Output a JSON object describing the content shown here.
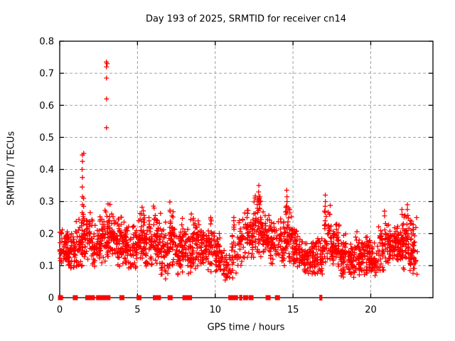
{
  "chart_data": {
    "type": "scatter",
    "title": "Day 193 of 2025, SRMTID for receiver cn14",
    "xlabel": "GPS time / hours",
    "ylabel": "SRMTID / TECUs",
    "xlim": [
      0,
      24
    ],
    "ylim": [
      0,
      0.8
    ],
    "xticks": [
      {
        "v": 0,
        "label": "0"
      },
      {
        "v": 5,
        "label": "5"
      },
      {
        "v": 10,
        "label": "10"
      },
      {
        "v": 15,
        "label": "15"
      },
      {
        "v": 20,
        "label": "20"
      }
    ],
    "yticks": [
      {
        "v": 0.0,
        "label": "0"
      },
      {
        "v": 0.1,
        "label": "0.1"
      },
      {
        "v": 0.2,
        "label": "0.2"
      },
      {
        "v": 0.3,
        "label": "0.3"
      },
      {
        "v": 0.4,
        "label": "0.4"
      },
      {
        "v": 0.5,
        "label": "0.5"
      },
      {
        "v": 0.6,
        "label": "0.6"
      },
      {
        "v": 0.7,
        "label": "0.7"
      },
      {
        "v": 0.8,
        "label": "0.8"
      }
    ],
    "grid": {
      "show": true,
      "color": "#a0a0a0",
      "dash": [
        4,
        3
      ]
    },
    "border_color": "#000000",
    "marker": {
      "shape": "plus",
      "color": "#ff0000",
      "size": 7,
      "stroke_width": 1.3
    },
    "series_name": "SRMTID",
    "data_x_end": 23.0,
    "seed": 7,
    "band_bins": {
      "bin_width": 0.5,
      "format": [
        "x_start",
        "y_min",
        "y_max",
        "count"
      ],
      "data": [
        [
          0.0,
          0.09,
          0.22,
          55
        ],
        [
          0.5,
          0.07,
          0.21,
          55
        ],
        [
          1.0,
          0.08,
          0.25,
          50
        ],
        [
          1.5,
          0.1,
          0.29,
          45
        ],
        [
          2.0,
          0.08,
          0.26,
          40
        ],
        [
          2.5,
          0.1,
          0.3,
          50
        ],
        [
          3.0,
          0.1,
          0.31,
          55
        ],
        [
          3.5,
          0.09,
          0.28,
          55
        ],
        [
          4.0,
          0.08,
          0.27,
          55
        ],
        [
          4.5,
          0.08,
          0.24,
          45
        ],
        [
          5.0,
          0.11,
          0.3,
          55
        ],
        [
          5.5,
          0.08,
          0.26,
          50
        ],
        [
          6.0,
          0.09,
          0.3,
          55
        ],
        [
          6.5,
          0.05,
          0.25,
          45
        ],
        [
          7.0,
          0.09,
          0.3,
          55
        ],
        [
          7.5,
          0.06,
          0.26,
          55
        ],
        [
          8.0,
          0.07,
          0.28,
          45
        ],
        [
          8.5,
          0.09,
          0.26,
          50
        ],
        [
          9.0,
          0.08,
          0.23,
          50
        ],
        [
          9.5,
          0.06,
          0.25,
          40
        ],
        [
          10.0,
          0.06,
          0.22,
          50
        ],
        [
          10.5,
          0.04,
          0.16,
          30
        ],
        [
          11.0,
          0.05,
          0.24,
          28
        ],
        [
          11.5,
          0.09,
          0.27,
          40
        ],
        [
          12.0,
          0.11,
          0.29,
          50
        ],
        [
          12.5,
          0.12,
          0.33,
          55
        ],
        [
          13.0,
          0.11,
          0.28,
          50
        ],
        [
          13.5,
          0.1,
          0.26,
          40
        ],
        [
          14.0,
          0.08,
          0.27,
          40
        ],
        [
          14.5,
          0.09,
          0.31,
          50
        ],
        [
          15.0,
          0.08,
          0.23,
          50
        ],
        [
          15.5,
          0.07,
          0.19,
          45
        ],
        [
          16.0,
          0.06,
          0.21,
          45
        ],
        [
          16.5,
          0.06,
          0.2,
          40
        ],
        [
          17.0,
          0.09,
          0.29,
          45
        ],
        [
          17.5,
          0.08,
          0.24,
          55
        ],
        [
          18.0,
          0.06,
          0.21,
          50
        ],
        [
          18.5,
          0.05,
          0.18,
          45
        ],
        [
          19.0,
          0.06,
          0.21,
          50
        ],
        [
          19.5,
          0.07,
          0.21,
          50
        ],
        [
          20.0,
          0.06,
          0.18,
          45
        ],
        [
          20.5,
          0.07,
          0.25,
          45
        ],
        [
          21.0,
          0.1,
          0.24,
          50
        ],
        [
          21.5,
          0.11,
          0.23,
          55
        ],
        [
          22.0,
          0.08,
          0.28,
          55
        ],
        [
          22.5,
          0.06,
          0.27,
          50
        ]
      ]
    },
    "outlier_columns": [
      {
        "x": 1.45,
        "values": [
          0.21,
          0.24,
          0.265,
          0.29,
          0.315,
          0.345,
          0.375,
          0.4,
          0.425,
          0.445
        ]
      },
      {
        "x": 1.53,
        "values": [
          0.2,
          0.23,
          0.26,
          0.285,
          0.31,
          0.45
        ]
      },
      {
        "x": 3.0,
        "values": [
          0.53,
          0.62,
          0.685,
          0.72,
          0.735
        ]
      },
      {
        "x": 3.06,
        "values": [
          0.73
        ]
      },
      {
        "x": 9.7,
        "values": [
          0.23,
          0.245,
          0.25
        ]
      },
      {
        "x": 11.2,
        "values": [
          0.22,
          0.24,
          0.25
        ]
      },
      {
        "x": 12.8,
        "values": [
          0.3,
          0.315,
          0.33,
          0.35
        ]
      },
      {
        "x": 12.85,
        "values": [
          0.29,
          0.31
        ]
      },
      {
        "x": 14.6,
        "values": [
          0.27,
          0.285,
          0.3,
          0.315,
          0.335
        ]
      },
      {
        "x": 17.08,
        "values": [
          0.27,
          0.285,
          0.3,
          0.32
        ]
      },
      {
        "x": 20.9,
        "values": [
          0.255,
          0.27
        ]
      },
      {
        "x": 22.0,
        "values": [
          0.26,
          0.275
        ]
      },
      {
        "x": 22.35,
        "values": [
          0.275,
          0.29
        ]
      }
    ],
    "zero_markers": [
      {
        "x": 0.05
      },
      {
        "x": 1.0
      },
      {
        "x": 1.8
      },
      {
        "x": 2.1
      },
      {
        "x": 2.5
      },
      {
        "x": 2.7
      },
      {
        "x": 2.9
      },
      {
        "x": 3.1
      },
      {
        "x": 4.0
      },
      {
        "x": 5.1
      },
      {
        "x": 6.15
      },
      {
        "x": 6.35
      },
      {
        "x": 7.1
      },
      {
        "x": 8.05
      },
      {
        "x": 8.2
      },
      {
        "x": 8.35
      },
      {
        "x": 11.0
      },
      {
        "x": 11.15
      },
      {
        "x": 11.3
      },
      {
        "x": 11.6,
        "thin": true
      },
      {
        "x": 11.68,
        "thin": true
      },
      {
        "x": 11.95
      },
      {
        "x": 12.3
      },
      {
        "x": 13.4
      },
      {
        "x": 14.0
      },
      {
        "x": 16.75,
        "thin": true
      },
      {
        "x": 16.83,
        "thin": true
      }
    ]
  }
}
